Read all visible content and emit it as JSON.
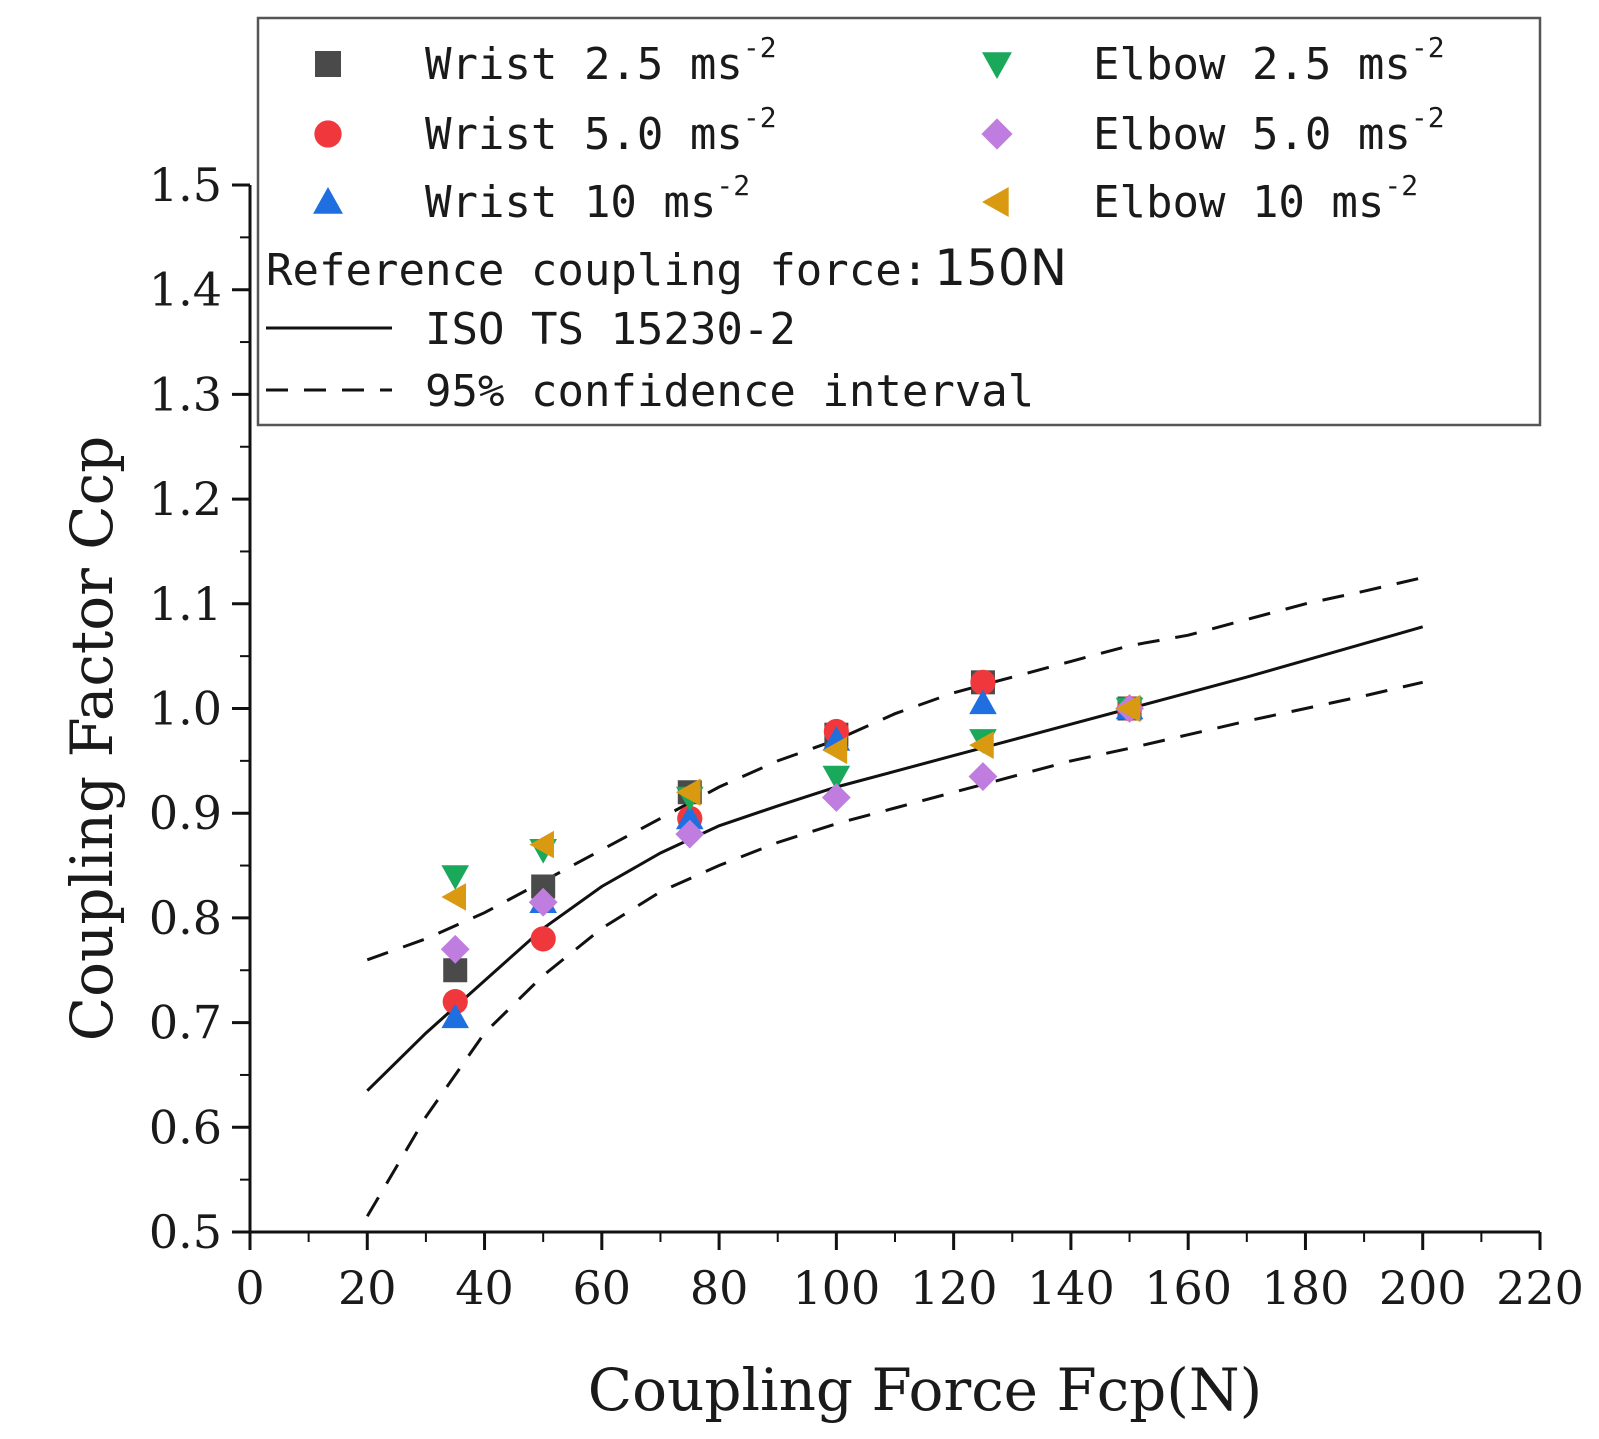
{
  "chart_data": {
    "type": "scatter",
    "title": "",
    "xlabel": "Coupling Force Fcp(N)",
    "ylabel": "Coupling Factor Ccp",
    "xlim": [
      0,
      220
    ],
    "ylim": [
      0.5,
      1.5
    ],
    "xticks": [
      0,
      20,
      40,
      60,
      80,
      100,
      120,
      140,
      160,
      180,
      200,
      220
    ],
    "yticks": [
      0.5,
      0.6,
      0.7,
      0.8,
      0.9,
      1.0,
      1.1,
      1.2,
      1.3,
      1.4,
      1.5
    ],
    "xtick_labels": [
      "0",
      "20",
      "40",
      "60",
      "80",
      "100",
      "120",
      "140",
      "160",
      "180",
      "200",
      "220"
    ],
    "ytick_labels": [
      "0.5",
      "0.6",
      "0.7",
      "0.8",
      "0.9",
      "1.0",
      "1.1",
      "1.2",
      "1.3",
      "1.4",
      "1.5"
    ],
    "grid": false,
    "legend_position": "top",
    "series": [
      {
        "name": "Wrist 2.5",
        "label_main": "Wrist 2.5 ms",
        "label_sup": "-2",
        "marker": "square",
        "color": "#4a4a4a",
        "x": [
          35,
          50,
          75,
          100,
          125,
          150
        ],
        "y": [
          0.75,
          0.83,
          0.92,
          0.975,
          1.025,
          1.0
        ]
      },
      {
        "name": "Wrist 5.0",
        "label_main": "Wrist 5.0 ms",
        "label_sup": "-2",
        "marker": "circle",
        "color": "#f0383c",
        "x": [
          35,
          50,
          75,
          100,
          125,
          150
        ],
        "y": [
          0.72,
          0.78,
          0.895,
          0.978,
          1.025,
          1.0
        ]
      },
      {
        "name": "Wrist 10",
        "label_main": "Wrist 10 ms",
        "label_sup": "-2",
        "marker": "triangle-up",
        "color": "#1f6fe0",
        "x": [
          35,
          50,
          75,
          100,
          125,
          150
        ],
        "y": [
          0.705,
          0.815,
          0.895,
          0.97,
          1.005,
          1.0
        ]
      },
      {
        "name": "Elbow 2.5",
        "label_main": "Elbow 2.5 ms",
        "label_sup": "-2",
        "marker": "triangle-down",
        "color": "#1aa85a",
        "x": [
          35,
          50,
          75,
          100,
          125,
          150
        ],
        "y": [
          0.84,
          0.865,
          0.915,
          0.935,
          0.97,
          1.0
        ]
      },
      {
        "name": "Elbow 5.0",
        "label_main": "Elbow 5.0 ms",
        "label_sup": "-2",
        "marker": "diamond",
        "color": "#bf7de0",
        "x": [
          35,
          50,
          75,
          100,
          125,
          150
        ],
        "y": [
          0.77,
          0.815,
          0.88,
          0.915,
          0.935,
          1.0
        ]
      },
      {
        "name": "Elbow 10",
        "label_main": "Elbow 10 ms",
        "label_sup": "-2",
        "marker": "triangle-left",
        "color": "#d99a12",
        "x": [
          35,
          50,
          75,
          100,
          125,
          150
        ],
        "y": [
          0.82,
          0.87,
          0.92,
          0.96,
          0.965,
          1.0
        ]
      }
    ],
    "curves": [
      {
        "name": "ISO TS 15230-2",
        "style": "solid",
        "color": "#111111",
        "x": [
          20,
          30,
          40,
          50,
          60,
          70,
          80,
          90,
          100,
          110,
          120,
          130,
          140,
          150,
          160,
          170,
          180,
          190,
          200
        ],
        "y": [
          0.635,
          0.69,
          0.74,
          0.79,
          0.83,
          0.862,
          0.888,
          0.907,
          0.925,
          0.94,
          0.955,
          0.97,
          0.985,
          1.0,
          1.015,
          1.03,
          1.046,
          1.062,
          1.078
        ]
      },
      {
        "name": "95% confidence interval (upper)",
        "style": "dashed",
        "color": "#111111",
        "x": [
          20,
          30,
          40,
          50,
          60,
          70,
          80,
          90,
          100,
          110,
          120,
          130,
          140,
          150,
          160,
          170,
          180,
          190,
          200
        ],
        "y": [
          0.76,
          0.78,
          0.805,
          0.835,
          0.865,
          0.895,
          0.925,
          0.95,
          0.97,
          0.995,
          1.015,
          1.03,
          1.045,
          1.06,
          1.07,
          1.085,
          1.1,
          1.112,
          1.125
        ]
      },
      {
        "name": "95% confidence interval (lower)",
        "style": "dashed",
        "color": "#111111",
        "x": [
          20,
          30,
          40,
          50,
          60,
          70,
          80,
          90,
          100,
          110,
          120,
          130,
          140,
          150,
          160,
          170,
          180,
          190,
          200
        ],
        "y": [
          0.515,
          0.61,
          0.69,
          0.745,
          0.79,
          0.825,
          0.85,
          0.872,
          0.89,
          0.905,
          0.92,
          0.935,
          0.95,
          0.962,
          0.975,
          0.988,
          1.0,
          1.012,
          1.025
        ]
      }
    ],
    "legend": {
      "reference_text": "Reference coupling force:",
      "reference_value": "150N",
      "iso_label": "ISO TS 15230-2",
      "ci_label": "95% confidence interval"
    }
  }
}
